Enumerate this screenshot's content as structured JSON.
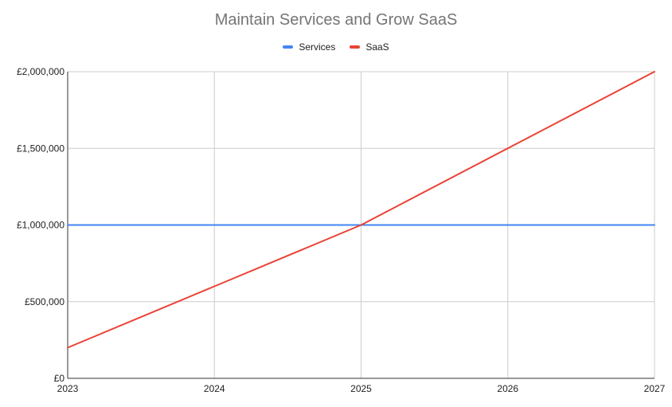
{
  "chart_data": {
    "type": "line",
    "title": "Maintain Services and Grow SaaS",
    "xlabel": "",
    "ylabel": "",
    "x": [
      "2023",
      "2024",
      "2025",
      "2026",
      "2027"
    ],
    "series": [
      {
        "name": "Services",
        "color": "#4285f4",
        "values": [
          1000000,
          1000000,
          1000000,
          1000000,
          1000000
        ]
      },
      {
        "name": "SaaS",
        "color": "#ea4335",
        "values": [
          200000,
          600000,
          1000000,
          1500000,
          2000000
        ]
      }
    ],
    "ylim": [
      0,
      2000000
    ],
    "yticks": [
      0,
      500000,
      1000000,
      1500000,
      2000000
    ],
    "ytick_labels": [
      "£0",
      "£500,000",
      "£1,000,000",
      "£1,500,000",
      "£2,000,000"
    ],
    "grid": true,
    "legend_position": "top"
  }
}
